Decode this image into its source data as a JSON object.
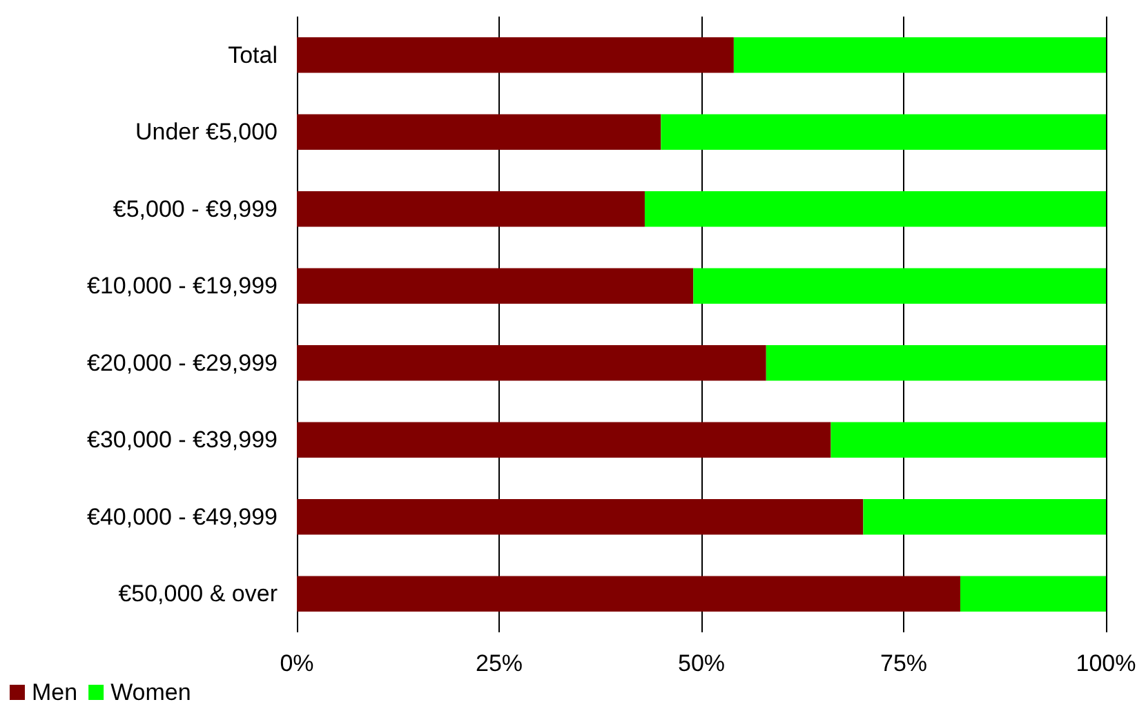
{
  "chart_data": {
    "type": "bar",
    "orientation": "horizontal",
    "stacked": true,
    "categories": [
      "Total",
      "Under €5,000",
      "€5,000 - €9,999",
      "€10,000 - €19,999",
      "€20,000 - €29,999",
      "€30,000 - €39,999",
      "€40,000 - €49,999",
      "€50,000 & over"
    ],
    "series": [
      {
        "name": "Men",
        "color": "#800000",
        "values": [
          54,
          45,
          43,
          49,
          58,
          66,
          70,
          82
        ]
      },
      {
        "name": "Women",
        "color": "#00ff00",
        "values": [
          46,
          55,
          57,
          51,
          42,
          34,
          30,
          18
        ]
      }
    ],
    "xlim": [
      0,
      100
    ],
    "xticks": [
      {
        "value": 0,
        "label": "0%"
      },
      {
        "value": 25,
        "label": "25%"
      },
      {
        "value": 50,
        "label": "50%"
      },
      {
        "value": 75,
        "label": "75%"
      },
      {
        "value": 100,
        "label": "100%"
      }
    ],
    "grid": "x",
    "legend": "bottom left"
  }
}
